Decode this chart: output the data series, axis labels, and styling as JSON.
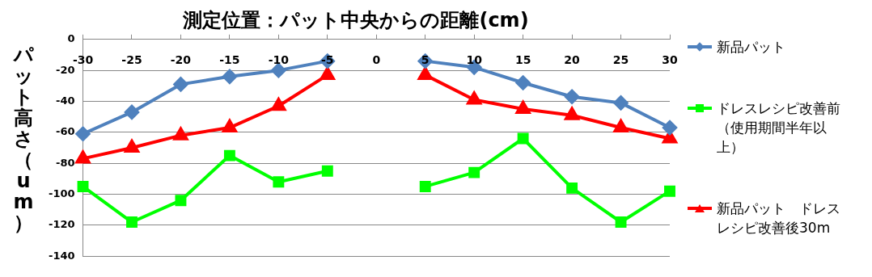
{
  "chart_data": {
    "type": "line",
    "title": "測定位置：パット中央からの距離(cm)",
    "ylabel": "パット高さ（um）",
    "categories": [
      "-30",
      "-25",
      "-20",
      "-15",
      "-10",
      "-5",
      "0",
      "5",
      "10",
      "15",
      "20",
      "25",
      "30"
    ],
    "series": [
      {
        "name": "新品パット",
        "color": "#4f81bd",
        "marker": "diamond",
        "values": [
          -61,
          -47,
          -29,
          -24,
          -20,
          -14,
          null,
          -14,
          -18,
          -28,
          -37,
          -41,
          -57
        ]
      },
      {
        "name": "ドレスレシピ改善前（使用期間半年以上）",
        "color": "#00ff00",
        "marker": "square",
        "values": [
          -95,
          -118,
          -104,
          -75,
          -92,
          -85,
          null,
          -95,
          -86,
          -64,
          -96,
          -118,
          -98
        ]
      },
      {
        "name": "新品パット　ドレスレシピ改善後30m",
        "color": "#ff0000",
        "marker": "triangle",
        "values": [
          -77,
          -70,
          -62,
          -57,
          -43,
          -23,
          null,
          -23,
          -39,
          -45,
          -49,
          -57,
          -64
        ]
      }
    ],
    "ylim": [
      -140,
      0
    ],
    "yticks": [
      -140,
      -120,
      -100,
      -80,
      -60,
      -40,
      -20,
      0
    ],
    "grid": "y",
    "legend": "right"
  }
}
